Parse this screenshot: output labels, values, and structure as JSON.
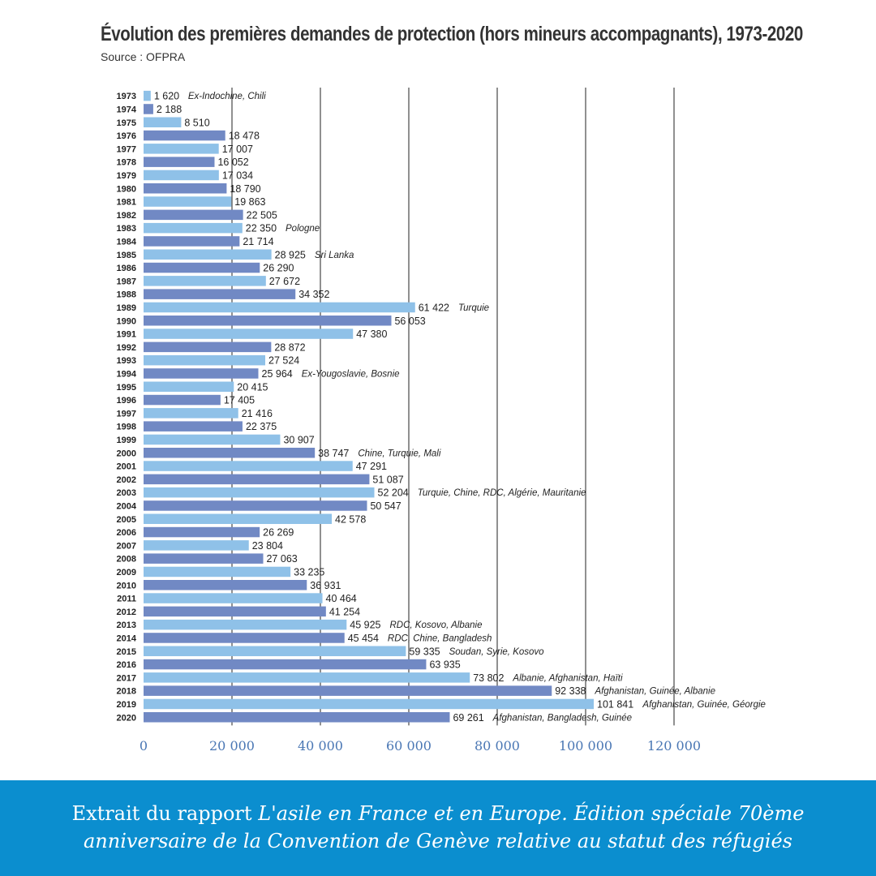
{
  "chart_data": {
    "type": "bar",
    "orientation": "horizontal",
    "title": "Évolution des premières demandes de protection (hors mineurs accompagnants), 1973-2020",
    "subtitle": "Source : OFPRA",
    "xlim": [
      0,
      120000
    ],
    "x_ticks": [
      "0",
      "20 000",
      "40 000",
      "60 000",
      "80 000",
      "100 000",
      "120 000"
    ],
    "x_tick_values": [
      0,
      20000,
      40000,
      60000,
      80000,
      100000,
      120000
    ],
    "grid": "vertical",
    "colors": {
      "light": "#8fc1e8",
      "dark": "#7189c4",
      "grid": "#222222",
      "tick": "#4a77b4"
    },
    "categories": [
      "1973",
      "1974",
      "1975",
      "1976",
      "1977",
      "1978",
      "1979",
      "1980",
      "1981",
      "1982",
      "1983",
      "1984",
      "1985",
      "1986",
      "1987",
      "1988",
      "1989",
      "1990",
      "1991",
      "1992",
      "1993",
      "1994",
      "1995",
      "1996",
      "1997",
      "1998",
      "1999",
      "2000",
      "2001",
      "2002",
      "2003",
      "2004",
      "2005",
      "2006",
      "2007",
      "2008",
      "2009",
      "2010",
      "2011",
      "2012",
      "2013",
      "2014",
      "2015",
      "2016",
      "2017",
      "2018",
      "2019",
      "2020"
    ],
    "values": [
      1620,
      2188,
      8510,
      18478,
      17007,
      16052,
      17034,
      18790,
      19863,
      22505,
      22350,
      21714,
      28925,
      26290,
      27672,
      34352,
      61422,
      56053,
      47380,
      28872,
      27524,
      25964,
      20415,
      17405,
      21416,
      22375,
      30907,
      38747,
      47291,
      51087,
      52204,
      50547,
      42578,
      26269,
      23804,
      27063,
      33235,
      36931,
      40464,
      41254,
      45925,
      45454,
      59335,
      63935,
      73802,
      92338,
      101841,
      69261
    ],
    "value_labels": [
      "1 620",
      "2 188",
      "8 510",
      "18 478",
      "17 007",
      "16 052",
      "17 034",
      "18 790",
      "19 863",
      "22 505",
      "22 350",
      "21 714",
      "28 925",
      "26 290",
      "27 672",
      "34 352",
      "61 422",
      "56 053",
      "47 380",
      "28 872",
      "27 524",
      "25 964",
      "20 415",
      "17 405",
      "21 416",
      "22 375",
      "30 907",
      "38 747",
      "47 291",
      "51 087",
      "52 204",
      "50 547",
      "42 578",
      "26 269",
      "23 804",
      "27 063",
      "33 235",
      "36 931",
      "40 464",
      "41 254",
      "45 925",
      "45 454",
      "59 335",
      "63 935",
      "73 802",
      "92 338",
      "101 841",
      "69 261"
    ],
    "annotations": [
      "Ex-Indochine, Chili",
      "",
      "",
      "",
      "",
      "",
      "",
      "",
      "",
      "",
      "Pologne",
      "",
      "Sri Lanka",
      "",
      "",
      "",
      "Turquie",
      "",
      "",
      "",
      "",
      "Ex-Yougoslavie, Bosnie",
      "",
      "",
      "",
      "",
      "",
      "Chine, Turquie, Mali",
      "",
      "",
      "Turquie, Chine, RDC, Algérie, Mauritanie",
      "",
      "",
      "",
      "",
      "",
      "",
      "",
      "",
      "",
      "RDC, Kosovo, Albanie",
      "RDC, Chine, Bangladesh",
      "Soudan, Syrie, Kosovo",
      "",
      "Albanie, Afghanistan, Haïti",
      "Afghanistan, Guinée, Albanie",
      "Afghanistan, Guinée, Géorgie",
      "Afghanistan, Bangladesh, Guinée"
    ],
    "bar_colors": [
      "light",
      "dark",
      "light",
      "dark",
      "light",
      "dark",
      "light",
      "dark",
      "light",
      "dark",
      "light",
      "dark",
      "light",
      "dark",
      "light",
      "dark",
      "light",
      "dark",
      "light",
      "dark",
      "light",
      "dark",
      "light",
      "dark",
      "light",
      "dark",
      "light",
      "dark",
      "light",
      "dark",
      "light",
      "dark",
      "light",
      "dark",
      "light",
      "dark",
      "light",
      "dark",
      "light",
      "dark",
      "light",
      "dark",
      "light",
      "dark",
      "light",
      "dark",
      "light",
      "dark"
    ]
  },
  "footer": {
    "line1_prefix": "Extrait du rapport ",
    "line1_italic": "L'asile en France et en Europe. Édition spéciale 70ème",
    "line2_italic": "anniversaire de la Convention de Genève relative au statut des réfugiés"
  }
}
